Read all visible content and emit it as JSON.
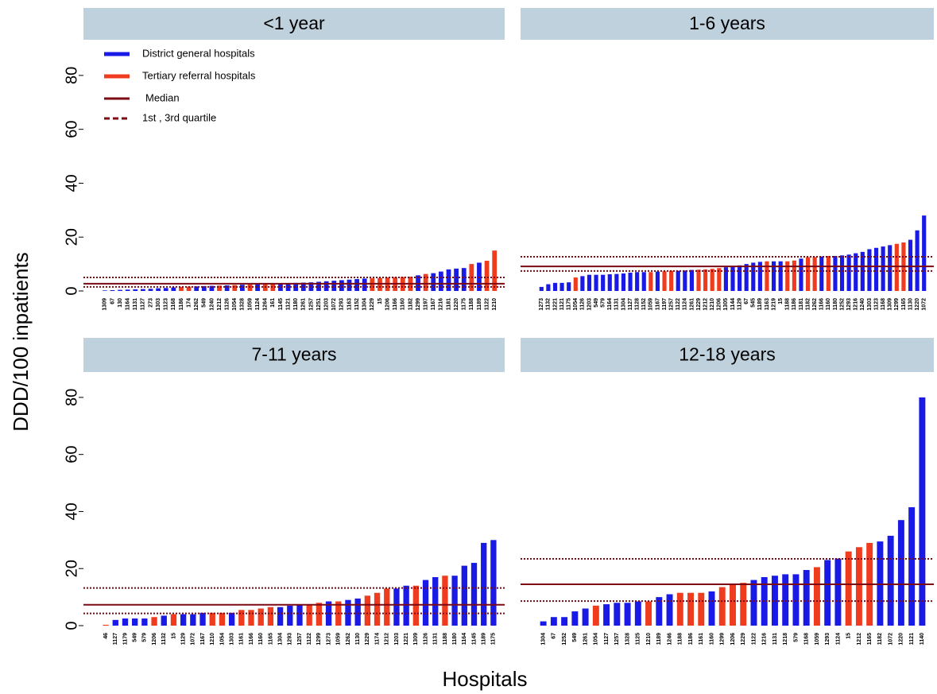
{
  "y_label": "DDD/100 inpatients",
  "x_label": "Hospitals",
  "chart_data": [
    {
      "type": "bar",
      "title": "<1 year",
      "categories": [
        "1309",
        "67",
        "130",
        "1164",
        "1131",
        "1127",
        "273",
        "1303",
        "1123",
        "1168",
        "1186",
        "174",
        "1262",
        "549",
        "1240",
        "1212",
        "1126",
        "1054",
        "1328",
        "1059",
        "1124",
        "1264",
        "161",
        "1145",
        "1121",
        "1180",
        "1261",
        "1257",
        "1251",
        "1203",
        "1072",
        "1293",
        "1163",
        "1152",
        "1304",
        "1229",
        "15",
        "1206",
        "1166",
        "1160",
        "1182",
        "1299",
        "1197",
        "1167",
        "1216",
        "1181",
        "1220",
        "1175",
        "1188",
        "1189",
        "1122",
        "1210"
      ],
      "series": [
        {
          "name": "District general hospitals",
          "color": "#1a1ae6",
          "values": [
            0.2,
            0.3,
            0.4,
            0.5,
            0.6,
            0.7,
            0.8,
            1.0,
            1.1,
            1.3,
            null,
            null,
            1.7,
            1.8,
            1.9,
            null,
            2.1,
            null,
            2.3,
            null,
            2.5,
            null,
            null,
            2.8,
            2.9,
            3.0,
            3.1,
            3.2,
            3.4,
            3.6,
            3.8,
            4.0,
            4.2,
            4.4,
            4.6,
            null,
            null,
            null,
            null,
            null,
            null,
            5.8,
            null,
            6.6,
            7.2,
            8.0,
            8.3,
            8.5,
            null,
            10.5,
            null,
            null
          ]
        },
        {
          "name": "Tertiary referral hospitals",
          "color": "#f03c1e",
          "values": [
            null,
            null,
            null,
            null,
            null,
            null,
            null,
            null,
            null,
            null,
            1.5,
            1.6,
            null,
            null,
            null,
            2.0,
            null,
            2.2,
            null,
            2.4,
            null,
            2.6,
            2.7,
            null,
            null,
            null,
            null,
            null,
            null,
            null,
            null,
            null,
            null,
            null,
            null,
            4.7,
            4.8,
            5.0,
            5.1,
            5.2,
            5.3,
            null,
            6.3,
            null,
            null,
            null,
            null,
            null,
            10,
            null,
            11.2,
            15
          ]
        }
      ],
      "median": 2.7,
      "quartiles": [
        1.5,
        5
      ],
      "line_color": "#7b0a14",
      "legend": {
        "median": "Median",
        "quartiles": "1st , 3rd quartile"
      },
      "ylim": [
        0,
        90
      ],
      "yticks": [
        0,
        20,
        40,
        60,
        80
      ]
    },
    {
      "type": "bar",
      "title": "1-6 years",
      "categories": [
        "1273",
        "1132",
        "1221",
        "1121",
        "1175",
        "1054",
        "1126",
        "1203",
        "549",
        "579",
        "1164",
        "1131",
        "1304",
        "1127",
        "1128",
        "1152",
        "1059",
        "1167",
        "1197",
        "1257",
        "1122",
        "1124",
        "1261",
        "1229",
        "1212",
        "1210",
        "1206",
        "1305",
        "1144",
        "1129",
        "67",
        "545",
        "1189",
        "1163",
        "1219",
        "15",
        "1188",
        "1186",
        "1181",
        "1182",
        "1262",
        "1166",
        "1160",
        "1180",
        "1252",
        "1293",
        "1216",
        "1240",
        "1303",
        "1123",
        "1168",
        "1309",
        "1299",
        "1165",
        "1130",
        "1220",
        "1072"
      ],
      "series": [
        {
          "color": "#1a1ae6",
          "values": [
            1.5,
            2.5,
            3,
            3,
            3.2,
            null,
            5.5,
            6,
            6,
            6,
            6.2,
            6.3,
            6.5,
            6.8,
            7,
            7,
            null,
            7.2,
            null,
            null,
            7.5,
            7.6,
            7.8,
            null,
            null,
            null,
            null,
            8.8,
            9,
            9.5,
            10,
            10.5,
            10.8,
            null,
            11,
            11,
            null,
            null,
            12,
            null,
            null,
            12.8,
            null,
            13,
            13.2,
            13.5,
            14,
            14.5,
            15.5,
            16,
            16.5,
            17,
            null,
            null,
            19,
            22.5,
            28
          ]
        },
        {
          "color": "#f03c1e",
          "values": [
            null,
            null,
            null,
            null,
            null,
            5,
            null,
            null,
            null,
            null,
            null,
            null,
            null,
            null,
            null,
            null,
            7,
            null,
            7.3,
            7.5,
            null,
            null,
            null,
            7.9,
            8,
            8.2,
            8.5,
            null,
            null,
            null,
            null,
            null,
            null,
            11,
            null,
            null,
            11,
            11.3,
            null,
            12.5,
            12.6,
            null,
            13,
            null,
            null,
            null,
            null,
            null,
            null,
            null,
            null,
            null,
            17.5,
            18,
            null,
            null,
            null
          ]
        }
      ],
      "median": 9.1,
      "quartiles": [
        7.4,
        12.7
      ],
      "line_color": "#7b0a14",
      "ylim": [
        0,
        90
      ]
    },
    {
      "type": "bar",
      "title": "7-11 years",
      "categories": [
        "46",
        "1127",
        "1179",
        "549",
        "579",
        "1206",
        "1132",
        "15",
        "1129",
        "1072",
        "1167",
        "1210",
        "1054",
        "1303",
        "1161",
        "1166",
        "1160",
        "1165",
        "1304",
        "1293",
        "1257",
        "1122",
        "1299",
        "1273",
        "1059",
        "1262",
        "1130",
        "1229",
        "1174",
        "1212",
        "1203",
        "1221",
        "1309",
        "1126",
        "1131",
        "1188",
        "1180",
        "1164",
        "1145",
        "1189",
        "1175"
      ],
      "series": [
        {
          "color": "#1a1ae6",
          "values": [
            null,
            2,
            2.5,
            2.5,
            2.5,
            null,
            3.5,
            null,
            4,
            4,
            4.5,
            null,
            null,
            4.5,
            null,
            null,
            null,
            null,
            6.5,
            7,
            7.5,
            null,
            null,
            8.5,
            null,
            9,
            9.5,
            null,
            null,
            null,
            13,
            14,
            null,
            16,
            17,
            null,
            17.5,
            21,
            22,
            29,
            30
          ]
        },
        {
          "color": "#f03c1e",
          "values": [
            0.3,
            null,
            null,
            null,
            null,
            3,
            null,
            4,
            null,
            null,
            null,
            4.5,
            4.5,
            null,
            5.5,
            5.5,
            6,
            6.5,
            null,
            null,
            null,
            7.5,
            8,
            null,
            8.5,
            null,
            null,
            10.5,
            11.5,
            13,
            null,
            null,
            14,
            null,
            null,
            17.5,
            null,
            null,
            null,
            null,
            null
          ]
        }
      ],
      "median": 7.3,
      "quartiles": [
        4.3,
        13.2
      ],
      "line_color": "#7b0a14",
      "ylim": [
        0,
        90
      ],
      "yticks": [
        0,
        20,
        40,
        60,
        80
      ]
    },
    {
      "type": "bar",
      "title": "12-18 years",
      "categories": [
        "1304",
        "67",
        "1252",
        "549",
        "1261",
        "1054",
        "1127",
        "1257",
        "1328",
        "1125",
        "1210",
        "1189",
        "1246",
        "1188",
        "1186",
        "1161",
        "1160",
        "1299",
        "1206",
        "1229",
        "1122",
        "1216",
        "1131",
        "1218",
        "579",
        "1168",
        "1059",
        "1293",
        "1124",
        "15",
        "1212",
        "1165",
        "1182",
        "1072",
        "1220",
        "1121",
        "1140"
      ],
      "series": [
        {
          "color": "#1a1ae6",
          "values": [
            1.5,
            3,
            3,
            5,
            6,
            null,
            7.5,
            8,
            8,
            8.5,
            null,
            10,
            11,
            null,
            null,
            null,
            12,
            null,
            null,
            null,
            16,
            17,
            17.5,
            18,
            18,
            19.5,
            null,
            23,
            23.5,
            null,
            null,
            null,
            29.5,
            31.5,
            37,
            41.5,
            80
          ]
        },
        {
          "color": "#f03c1e",
          "values": [
            null,
            null,
            null,
            null,
            null,
            7,
            null,
            null,
            null,
            null,
            8.5,
            null,
            null,
            11.5,
            11.5,
            11.5,
            null,
            13.5,
            14.5,
            15,
            null,
            null,
            null,
            null,
            null,
            null,
            20.5,
            null,
            null,
            26,
            27.5,
            29,
            null,
            null,
            null,
            null,
            null
          ]
        }
      ],
      "median": 14.5,
      "quartiles": [
        8.6,
        23.4
      ],
      "line_color": "#7b0a14",
      "ylim": [
        0,
        90
      ]
    }
  ]
}
